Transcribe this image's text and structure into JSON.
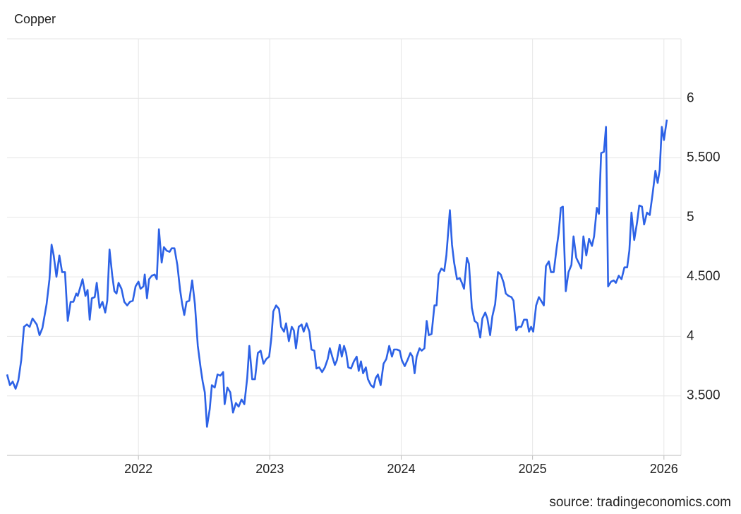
{
  "chart_data": {
    "type": "line",
    "title": "Copper",
    "source": "source: tradingeconomics.com",
    "x": [
      2021,
      2021.022,
      2021.043,
      2021.065,
      2021.086,
      2021.108,
      2021.129,
      2021.151,
      2021.172,
      2021.194,
      2021.226,
      2021.247,
      2021.269,
      2021.301,
      2021.323,
      2021.339,
      2021.355,
      2021.376,
      2021.398,
      2021.419,
      2021.441,
      2021.462,
      2021.484,
      2021.505,
      2021.527,
      2021.538,
      2021.559,
      2021.575,
      2021.597,
      2021.613,
      2021.629,
      2021.645,
      2021.667,
      2021.683,
      2021.704,
      2021.726,
      2021.747,
      2021.763,
      2021.78,
      2021.801,
      2021.817,
      2021.833,
      2021.849,
      2021.871,
      2021.892,
      2021.914,
      2021.935,
      2021.957,
      2021.978,
      2022,
      2022.016,
      2022.038,
      2022.048,
      2022.065,
      2022.081,
      2022.102,
      2022.124,
      2022.14,
      2022.156,
      2022.177,
      2022.194,
      2022.215,
      2022.237,
      2022.253,
      2022.274,
      2022.296,
      2022.317,
      2022.333,
      2022.349,
      2022.366,
      2022.387,
      2022.409,
      2022.43,
      2022.452,
      2022.473,
      2022.489,
      2022.505,
      2022.522,
      2022.543,
      2022.559,
      2022.581,
      2022.602,
      2022.624,
      2022.645,
      2022.656,
      2022.677,
      2022.699,
      2022.72,
      2022.742,
      2022.763,
      2022.785,
      2022.806,
      2022.828,
      2022.844,
      2022.866,
      2022.887,
      2022.909,
      2022.93,
      2022.952,
      2022.973,
      2022.995,
      2023.011,
      2023.027,
      2023.048,
      2023.07,
      2023.086,
      2023.108,
      2023.124,
      2023.145,
      2023.167,
      2023.183,
      2023.199,
      2023.22,
      2023.242,
      2023.258,
      2023.28,
      2023.301,
      2023.317,
      2023.339,
      2023.355,
      2023.376,
      2023.398,
      2023.419,
      2023.441,
      2023.457,
      2023.478,
      2023.495,
      2023.511,
      2023.532,
      2023.548,
      2023.565,
      2023.581,
      2023.597,
      2023.618,
      2023.64,
      2023.661,
      2023.677,
      2023.694,
      2023.71,
      2023.731,
      2023.747,
      2023.769,
      2023.79,
      2023.806,
      2023.823,
      2023.844,
      2023.866,
      2023.887,
      2023.909,
      2023.93,
      2023.946,
      2023.968,
      2023.989,
      2024.005,
      2024.027,
      2024.048,
      2024.07,
      2024.086,
      2024.102,
      2024.118,
      2024.14,
      2024.156,
      2024.177,
      2024.194,
      2024.21,
      2024.231,
      2024.253,
      2024.269,
      2024.285,
      2024.306,
      2024.328,
      2024.344,
      2024.371,
      2024.387,
      2024.403,
      2024.425,
      2024.446,
      2024.462,
      2024.478,
      2024.5,
      2024.516,
      2024.538,
      2024.559,
      2024.581,
      2024.602,
      2024.618,
      2024.64,
      2024.656,
      2024.677,
      2024.694,
      2024.715,
      2024.737,
      2024.758,
      2024.78,
      2024.796,
      2024.817,
      2024.839,
      2024.855,
      2024.876,
      2024.892,
      2024.914,
      2024.935,
      2024.957,
      2024.973,
      2024.989,
      2025.005,
      2025.027,
      2025.048,
      2025.07,
      2025.086,
      2025.102,
      2025.124,
      2025.14,
      2025.161,
      2025.183,
      2025.199,
      2025.215,
      2025.231,
      2025.253,
      2025.274,
      2025.296,
      2025.312,
      2025.333,
      2025.355,
      2025.371,
      2025.387,
      2025.409,
      2025.43,
      2025.452,
      2025.468,
      2025.489,
      2025.505,
      2025.522,
      2025.543,
      2025.559,
      2025.575,
      2025.597,
      2025.618,
      2025.634,
      2025.656,
      2025.677,
      2025.699,
      2025.72,
      2025.737,
      2025.753,
      2025.774,
      2025.796,
      2025.812,
      2025.833,
      2025.849,
      2025.871,
      2025.892,
      2025.914,
      2025.935,
      2025.952,
      2025.968,
      2025.984,
      2026,
      2026.022
    ],
    "series": [
      {
        "color": "#2d62e6",
        "values": [
          3.68,
          3.59,
          3.62,
          3.56,
          3.63,
          3.8,
          4.08,
          4.1,
          4.08,
          4.15,
          4.1,
          4.01,
          4.07,
          4.27,
          4.48,
          4.77,
          4.68,
          4.5,
          4.68,
          4.54,
          4.54,
          4.13,
          4.29,
          4.29,
          4.36,
          4.34,
          4.42,
          4.48,
          4.34,
          4.39,
          4.14,
          4.32,
          4.33,
          4.45,
          4.24,
          4.29,
          4.2,
          4.3,
          4.73,
          4.51,
          4.38,
          4.36,
          4.45,
          4.4,
          4.29,
          4.26,
          4.29,
          4.3,
          4.42,
          4.46,
          4.4,
          4.42,
          4.52,
          4.32,
          4.48,
          4.51,
          4.52,
          4.48,
          4.9,
          4.62,
          4.75,
          4.72,
          4.71,
          4.74,
          4.74,
          4.6,
          4.39,
          4.27,
          4.18,
          4.29,
          4.3,
          4.47,
          4.27,
          3.92,
          3.74,
          3.62,
          3.53,
          3.24,
          3.39,
          3.59,
          3.57,
          3.68,
          3.67,
          3.7,
          3.43,
          3.57,
          3.53,
          3.36,
          3.44,
          3.41,
          3.47,
          3.43,
          3.65,
          3.92,
          3.64,
          3.64,
          3.86,
          3.88,
          3.77,
          3.81,
          3.83,
          3.98,
          4.21,
          4.26,
          4.23,
          4.08,
          4.04,
          4.11,
          3.96,
          4.08,
          4.05,
          3.9,
          4.08,
          4.1,
          4.04,
          4.11,
          4.04,
          3.89,
          3.88,
          3.73,
          3.74,
          3.7,
          3.74,
          3.81,
          3.9,
          3.82,
          3.76,
          3.8,
          3.93,
          3.83,
          3.92,
          3.86,
          3.74,
          3.73,
          3.79,
          3.83,
          3.71,
          3.79,
          3.69,
          3.74,
          3.64,
          3.59,
          3.57,
          3.65,
          3.68,
          3.59,
          3.77,
          3.81,
          3.92,
          3.83,
          3.89,
          3.89,
          3.88,
          3.8,
          3.75,
          3.8,
          3.86,
          3.83,
          3.69,
          3.83,
          3.9,
          3.88,
          3.9,
          4.13,
          4.01,
          4.02,
          4.26,
          4.26,
          4.52,
          4.57,
          4.55,
          4.68,
          5.06,
          4.77,
          4.62,
          4.48,
          4.49,
          4.45,
          4.4,
          4.66,
          4.61,
          4.24,
          4.13,
          4.11,
          3.99,
          4.15,
          4.2,
          4.15,
          4.01,
          4.17,
          4.27,
          4.54,
          4.52,
          4.45,
          4.36,
          4.34,
          4.33,
          4.3,
          4.05,
          4.08,
          4.08,
          4.14,
          4.14,
          4.04,
          4.08,
          4.04,
          4.26,
          4.33,
          4.29,
          4.26,
          4.59,
          4.63,
          4.54,
          4.54,
          4.74,
          4.87,
          5.08,
          5.09,
          4.38,
          4.54,
          4.6,
          4.84,
          4.66,
          4.61,
          4.57,
          4.84,
          4.68,
          4.82,
          4.76,
          4.84,
          5.08,
          5.03,
          5.54,
          5.55,
          5.76,
          4.42,
          4.46,
          4.47,
          4.45,
          4.51,
          4.48,
          4.58,
          4.58,
          4.72,
          5.04,
          4.81,
          4.96,
          5.1,
          5.09,
          4.94,
          5.04,
          5.02,
          5.2,
          5.39,
          5.29,
          5.4,
          5.76,
          5.65,
          5.82
        ]
      }
    ],
    "xlim": [
      2021,
      2026.13
    ],
    "xticks": [
      2022,
      2023,
      2024,
      2025,
      2026
    ],
    "ylim": [
      3,
      6.5
    ],
    "yticks": [
      {
        "value": 3.5,
        "label": "3.500"
      },
      4,
      {
        "value": 4.5,
        "label": "4.500"
      },
      5,
      {
        "value": 5.5,
        "label": "5.500"
      },
      6
    ],
    "grid": true
  }
}
